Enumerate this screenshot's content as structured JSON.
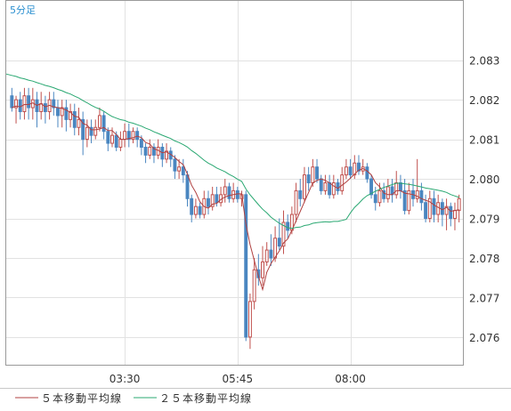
{
  "chart_data": {
    "type": "candlestick",
    "timeframe_label": "5分足",
    "ylim": [
      2.0753,
      2.0845
    ],
    "y_ticks": [
      "2.083",
      "2.082",
      "2.081",
      "2.080",
      "2.079",
      "2.078",
      "2.077",
      "2.076"
    ],
    "y_tick_values": [
      2.083,
      2.082,
      2.081,
      2.08,
      2.079,
      2.078,
      2.077,
      2.076
    ],
    "x_ticks": [
      "03:30",
      "05:45",
      "08:00"
    ],
    "x_tick_index": [
      27,
      54,
      81
    ],
    "grid": true,
    "legend_position": "bottom-left",
    "colors": {
      "up": "#c0504d",
      "down": "#4a86c0",
      "ma5": "#b04040",
      "ma25": "#2aa872",
      "grid": "#e2e2e2",
      "frame": "#9a9a9a",
      "timeframe": "#2a8fd0"
    },
    "legend": [
      {
        "label": "５本移動平均線",
        "color": "#b04040"
      },
      {
        "label": "２５本移動平均線",
        "color": "#2aa872"
      }
    ],
    "candles": [
      [
        2.0821,
        2.0818,
        2.0823,
        2.0817
      ],
      [
        2.0818,
        2.082,
        2.0821,
        2.0814
      ],
      [
        2.082,
        2.0817,
        2.0822,
        2.0815
      ],
      [
        2.0817,
        2.0821,
        2.0823,
        2.0815
      ],
      [
        2.0821,
        2.0818,
        2.0823,
        2.0815
      ],
      [
        2.0818,
        2.082,
        2.0823,
        2.0815
      ],
      [
        2.082,
        2.0817,
        2.0822,
        2.0813
      ],
      [
        2.0817,
        2.0819,
        2.0822,
        2.0815
      ],
      [
        2.0819,
        2.0817,
        2.0821,
        2.0814
      ],
      [
        2.0817,
        2.082,
        2.0822,
        2.0815
      ],
      [
        2.082,
        2.0818,
        2.0822,
        2.0816
      ],
      [
        2.0818,
        2.0816,
        2.082,
        2.0813
      ],
      [
        2.0816,
        2.0818,
        2.082,
        2.0813
      ],
      [
        2.0818,
        2.0815,
        2.082,
        2.0812
      ],
      [
        2.0815,
        2.0817,
        2.0819,
        2.0813
      ],
      [
        2.0817,
        2.0813,
        2.0819,
        2.0811
      ],
      [
        2.0813,
        2.0815,
        2.0818,
        2.0811
      ],
      [
        2.0815,
        2.081,
        2.0817,
        2.0806
      ],
      [
        2.081,
        2.0813,
        2.0815,
        2.0808
      ],
      [
        2.0813,
        2.0811,
        2.0815,
        2.0809
      ],
      [
        2.0811,
        2.0813,
        2.0815,
        2.081
      ],
      [
        2.0813,
        2.0816,
        2.0818,
        2.0812
      ],
      [
        2.0816,
        2.0812,
        2.0817,
        2.081
      ],
      [
        2.0812,
        2.0809,
        2.0813,
        2.0807
      ],
      [
        2.0809,
        2.0811,
        2.0813,
        2.0808
      ],
      [
        2.0811,
        2.0808,
        2.0812,
        2.0807
      ],
      [
        2.0808,
        2.081,
        2.0812,
        2.0807
      ],
      [
        2.081,
        2.0812,
        2.0814,
        2.0808
      ],
      [
        2.0812,
        2.081,
        2.0814,
        2.0808
      ],
      [
        2.081,
        2.0812,
        2.0813,
        2.0809
      ],
      [
        2.0812,
        2.081,
        2.0813,
        2.0808
      ],
      [
        2.081,
        2.0808,
        2.0811,
        2.0806
      ],
      [
        2.0808,
        2.0806,
        2.0809,
        2.0804
      ],
      [
        2.0806,
        2.0808,
        2.081,
        2.0805
      ],
      [
        2.0808,
        2.0806,
        2.0809,
        2.0804
      ],
      [
        2.0806,
        2.0808,
        2.081,
        2.0805
      ],
      [
        2.0808,
        2.0805,
        2.0809,
        2.0803
      ],
      [
        2.0805,
        2.0807,
        2.0809,
        2.0804
      ],
      [
        2.0807,
        2.0805,
        2.0808,
        2.0803
      ],
      [
        2.0805,
        2.0802,
        2.0806,
        2.08
      ],
      [
        2.0802,
        2.0803,
        2.0805,
        2.08
      ],
      [
        2.0803,
        2.0801,
        2.0805,
        2.0799
      ],
      [
        2.0801,
        2.0795,
        2.0802,
        2.0793
      ],
      [
        2.0795,
        2.0791,
        2.0796,
        2.0789
      ],
      [
        2.0791,
        2.0793,
        2.0795,
        2.079
      ],
      [
        2.0793,
        2.0791,
        2.0794,
        2.079
      ],
      [
        2.0791,
        2.0795,
        2.0797,
        2.079
      ],
      [
        2.0795,
        2.0793,
        2.0797,
        2.0791
      ],
      [
        2.0793,
        2.0796,
        2.0798,
        2.0792
      ],
      [
        2.0796,
        2.0794,
        2.0798,
        2.0793
      ],
      [
        2.0794,
        2.0796,
        2.0798,
        2.0793
      ],
      [
        2.0796,
        2.0798,
        2.08,
        2.0794
      ],
      [
        2.0798,
        2.0795,
        2.0799,
        2.0794
      ],
      [
        2.0795,
        2.0797,
        2.0799,
        2.0794
      ],
      [
        2.0797,
        2.0795,
        2.0798,
        2.0794
      ],
      [
        2.0795,
        2.0796,
        2.0797,
        2.0793
      ],
      [
        2.0796,
        2.076,
        2.0797,
        2.0759
      ],
      [
        2.076,
        2.0769,
        2.0771,
        2.0757
      ],
      [
        2.0769,
        2.0777,
        2.078,
        2.0767
      ],
      [
        2.0777,
        2.0775,
        2.0781,
        2.0773
      ],
      [
        2.0775,
        2.0779,
        2.0783,
        2.0773
      ],
      [
        2.0779,
        2.0782,
        2.0784,
        2.0778
      ],
      [
        2.0782,
        2.078,
        2.0786,
        2.0778
      ],
      [
        2.078,
        2.0785,
        2.0788,
        2.0779
      ],
      [
        2.0785,
        2.0783,
        2.079,
        2.0782
      ],
      [
        2.0783,
        2.0789,
        2.0792,
        2.0781
      ],
      [
        2.0789,
        2.0787,
        2.0791,
        2.0785
      ],
      [
        2.0787,
        2.0791,
        2.0793,
        2.0786
      ],
      [
        2.0791,
        2.0797,
        2.0799,
        2.0789
      ],
      [
        2.0797,
        2.0795,
        2.08,
        2.0793
      ],
      [
        2.0795,
        2.0801,
        2.0803,
        2.0794
      ],
      [
        2.0801,
        2.0799,
        2.0803,
        2.0797
      ],
      [
        2.0799,
        2.0803,
        2.0805,
        2.0798
      ],
      [
        2.0803,
        2.08,
        2.0805,
        2.0799
      ],
      [
        2.08,
        2.0797,
        2.0801,
        2.0796
      ],
      [
        2.0797,
        2.0799,
        2.0801,
        2.0796
      ],
      [
        2.0799,
        2.0796,
        2.0801,
        2.0795
      ],
      [
        2.0796,
        2.0799,
        2.0801,
        2.0795
      ],
      [
        2.0799,
        2.0797,
        2.08,
        2.0796
      ],
      [
        2.0797,
        2.0801,
        2.0803,
        2.0796
      ],
      [
        2.0801,
        2.0803,
        2.0805,
        2.08
      ],
      [
        2.0803,
        2.0801,
        2.0805,
        2.08
      ],
      [
        2.0801,
        2.0804,
        2.0806,
        2.08
      ],
      [
        2.0804,
        2.0802,
        2.0806,
        2.0801
      ],
      [
        2.0802,
        2.0803,
        2.0805,
        2.0801
      ],
      [
        2.0803,
        2.08,
        2.0804,
        2.0799
      ],
      [
        2.08,
        2.0796,
        2.0801,
        2.0795
      ],
      [
        2.0796,
        2.0794,
        2.0798,
        2.0792
      ],
      [
        2.0794,
        2.0797,
        2.0799,
        2.0793
      ],
      [
        2.0797,
        2.0795,
        2.0799,
        2.0794
      ],
      [
        2.0795,
        2.0798,
        2.08,
        2.0794
      ],
      [
        2.0798,
        2.0796,
        2.08,
        2.0794
      ],
      [
        2.0796,
        2.0799,
        2.0802,
        2.0795
      ],
      [
        2.0799,
        2.0797,
        2.0801,
        2.0795
      ],
      [
        2.0797,
        2.0792,
        2.08,
        2.0791
      ],
      [
        2.0792,
        2.0797,
        2.0799,
        2.0791
      ],
      [
        2.0797,
        2.0795,
        2.08,
        2.0793
      ],
      [
        2.0795,
        2.0797,
        2.0805,
        2.0794
      ],
      [
        2.0797,
        2.0794,
        2.0799,
        2.0792
      ],
      [
        2.0794,
        2.079,
        2.0796,
        2.0789
      ],
      [
        2.079,
        2.0795,
        2.0797,
        2.0789
      ],
      [
        2.0795,
        2.0791,
        2.0797,
        2.0789
      ],
      [
        2.0791,
        2.0794,
        2.0796,
        2.0789
      ],
      [
        2.0794,
        2.0791,
        2.0795,
        2.0788
      ],
      [
        2.0791,
        2.0793,
        2.0795,
        2.0787
      ],
      [
        2.0793,
        2.079,
        2.0794,
        2.0788
      ],
      [
        2.079,
        2.0792,
        2.0794,
        2.0787
      ],
      [
        2.0792,
        2.0795,
        2.0796,
        2.0789
      ]
    ],
    "ma25_start": 2.08265
  }
}
